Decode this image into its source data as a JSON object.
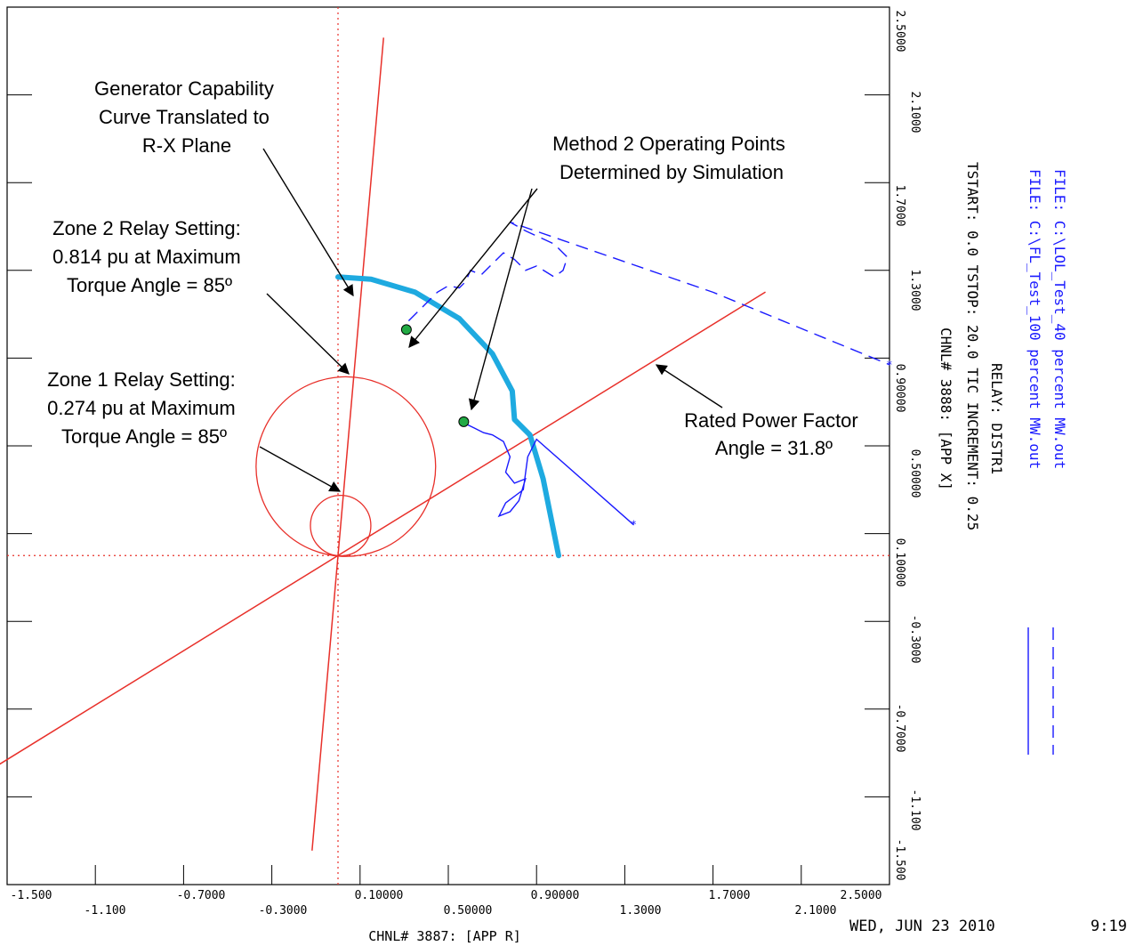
{
  "chart_data": {
    "type": "scatter",
    "title": "",
    "x_axis": {
      "label": "CHNL# 3887: [APP R]",
      "range": [
        -1.5,
        2.5
      ],
      "ticks_upper": [
        "-1.500",
        "-0.7000",
        "0.10000",
        "0.90000",
        "1.7000",
        "2.5000"
      ],
      "ticks_lower": [
        "-1.100",
        "-0.3000",
        "0.50000",
        "1.3000",
        "2.1000"
      ]
    },
    "y_axis": {
      "label": "CHNL# 3888: [APP X]",
      "range": [
        -1.5,
        2.5
      ],
      "ticks_upper": [
        "2.5000",
        "1.7000",
        "0.90000",
        "0.10000",
        "-0.7000",
        "-1.500"
      ],
      "ticks_lower": [
        "2.1000",
        "1.3000",
        "0.50000",
        "-0.3000",
        "-1.100"
      ]
    },
    "series": [
      {
        "name": "C:\\LOL_Test_40 percent MW.out",
        "style": "dashed",
        "color": "#1a1aff",
        "points": [
          [
            0.32,
            1.07
          ],
          [
            0.35,
            1.1
          ],
          [
            0.4,
            1.15
          ],
          [
            0.45,
            1.2
          ],
          [
            0.5,
            1.23
          ],
          [
            0.55,
            1.22
          ],
          [
            0.58,
            1.25
          ],
          [
            0.6,
            1.3
          ],
          [
            0.65,
            1.28
          ],
          [
            0.7,
            1.33
          ],
          [
            0.75,
            1.38
          ],
          [
            0.8,
            1.35
          ],
          [
            0.85,
            1.3
          ],
          [
            0.9,
            1.32
          ],
          [
            0.98,
            1.27
          ],
          [
            1.02,
            1.3
          ],
          [
            1.04,
            1.36
          ],
          [
            0.98,
            1.42
          ],
          [
            0.85,
            1.48
          ],
          [
            0.78,
            1.52
          ],
          [
            1.7,
            1.2
          ],
          [
            2.5,
            0.87
          ]
        ]
      },
      {
        "name": "C:\\FL_Test_100 percent MW.out",
        "style": "solid",
        "color": "#1a1aff",
        "points": [
          [
            0.58,
            0.6
          ],
          [
            0.62,
            0.58
          ],
          [
            0.66,
            0.56
          ],
          [
            0.7,
            0.55
          ],
          [
            0.75,
            0.52
          ],
          [
            0.78,
            0.45
          ],
          [
            0.76,
            0.38
          ],
          [
            0.8,
            0.33
          ],
          [
            0.85,
            0.35
          ],
          [
            0.82,
            0.25
          ],
          [
            0.78,
            0.2
          ],
          [
            0.73,
            0.18
          ],
          [
            0.76,
            0.24
          ],
          [
            0.84,
            0.3
          ],
          [
            0.86,
            0.45
          ],
          [
            0.9,
            0.53
          ],
          [
            1.34,
            0.14
          ]
        ]
      }
    ],
    "reference_lines": [
      {
        "kind": "mho_circle",
        "label": "Zone 2",
        "reach_pu": 0.814,
        "angle_deg": 85,
        "color": "#e8302a"
      },
      {
        "kind": "mho_circle",
        "label": "Zone 1",
        "reach_pu": 0.274,
        "angle_deg": 85,
        "color": "#e8302a"
      },
      {
        "kind": "line",
        "label": "Maximum Torque Angle",
        "angle_deg": 85,
        "color": "#e8302a"
      },
      {
        "kind": "line",
        "label": "Rated Power Factor Angle",
        "angle_deg": 31.8,
        "color": "#e8302a"
      },
      {
        "kind": "capability_curve",
        "color": "#1eaae0",
        "points": [
          [
            0.0,
            1.27
          ],
          [
            0.15,
            1.26
          ],
          [
            0.35,
            1.2
          ],
          [
            0.55,
            1.08
          ],
          [
            0.7,
            0.92
          ],
          [
            0.79,
            0.75
          ],
          [
            0.8,
            0.62
          ],
          [
            0.87,
            0.55
          ],
          [
            0.93,
            0.35
          ],
          [
            1.0,
            0.0
          ]
        ]
      }
    ],
    "operating_points": [
      [
        0.31,
        1.03
      ],
      [
        0.57,
        0.61
      ]
    ],
    "grid": "dotted axes at origin",
    "legend_placement": "right, vertical"
  },
  "annotations": {
    "capability": [
      "Generator Capability",
      "Curve Translated to",
      "R-X Plane"
    ],
    "method2": [
      "Method 2 Operating Points",
      "Determined by Simulation"
    ],
    "zone2": [
      "Zone 2 Relay Setting:",
      "0.814 pu at Maximum",
      "Torque Angle = 85º"
    ],
    "zone1": [
      "Zone 1 Relay Setting:",
      "0.274 pu at Maximum",
      "Torque Angle = 85º"
    ],
    "rated_pf": [
      "Rated Power Factor",
      "Angle = 31.8º"
    ]
  },
  "side_info": {
    "file1": "FILE: C:\\LOL_Test_40 percent MW.out",
    "file2": "FILE: C:\\FL_Test_100 percent MW.out",
    "relay": "RELAY: DISTR1",
    "tstart": "TSTART: 0.0  TSTOP: 20.0  TIC INCREMENT: 0.25",
    "chnl_y": "CHNL# 3888: [APP X]"
  },
  "footer": {
    "date": "WED, JUN 23 2010",
    "time": "9:19"
  }
}
